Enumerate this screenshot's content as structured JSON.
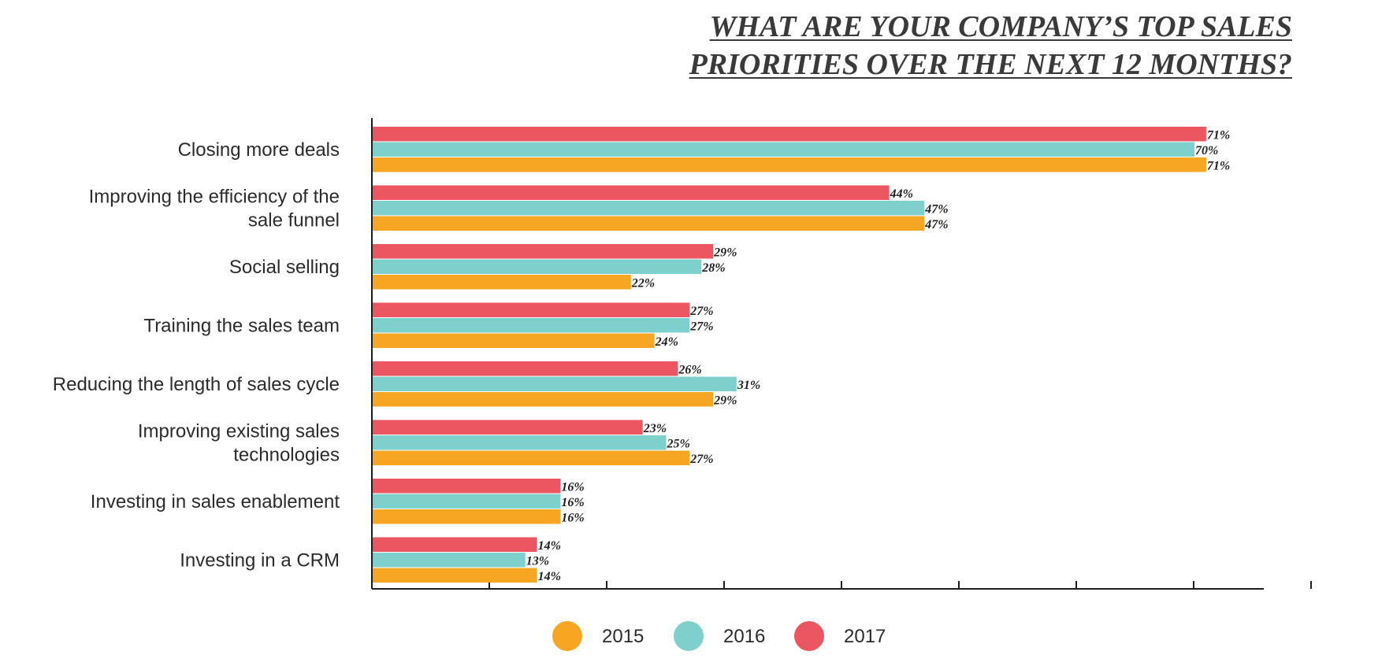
{
  "title_lines": [
    "WHAT ARE YOUR COMPANY’S TOP SALES",
    "PRIORITIES OVER THE NEXT 12 MONTHS?"
  ],
  "chart_data": {
    "type": "bar",
    "orientation": "horizontal",
    "categories": [
      [
        "Closing more deals"
      ],
      [
        "Improving the efficiency of the",
        "sale funnel"
      ],
      [
        "Social selling"
      ],
      [
        "Training the sales team"
      ],
      [
        "Reducing the length of sales cycle"
      ],
      [
        "Improving existing sales",
        "technologies"
      ],
      [
        "Investing in sales enablement"
      ],
      [
        "Investing in a CRM"
      ]
    ],
    "series": [
      {
        "name": "2017",
        "color": "#eb5660",
        "values": [
          71,
          44,
          29,
          27,
          26,
          23,
          16,
          14
        ]
      },
      {
        "name": "2016",
        "color": "#7ed0cc",
        "values": [
          70,
          47,
          28,
          27,
          31,
          25,
          16,
          13
        ]
      },
      {
        "name": "2015",
        "color": "#f6a623",
        "values": [
          71,
          47,
          22,
          24,
          29,
          27,
          16,
          14
        ]
      }
    ],
    "value_suffix": "%",
    "xlim": [
      0,
      76
    ],
    "grid": false,
    "legend_position": "bottom",
    "legend_order": [
      "2015",
      "2016",
      "2017"
    ]
  }
}
